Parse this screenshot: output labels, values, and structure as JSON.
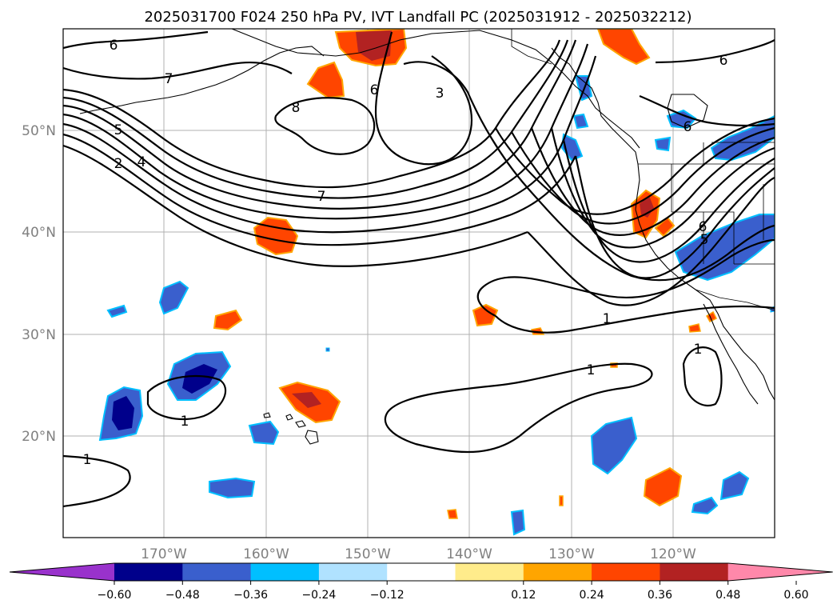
{
  "title": "2025031700 F024 250 hPa PV, IVT Landfall PC (2025031912 - 2025032212)",
  "axes": {
    "x_ticks": [
      "170°W",
      "160°W",
      "150°W",
      "140°W",
      "130°W",
      "120°W"
    ],
    "y_ticks": [
      "50°N",
      "40°N",
      "30°N",
      "20°N"
    ],
    "lon_range": [
      -180,
      -110
    ],
    "lat_range": [
      10,
      60
    ],
    "grid": true
  },
  "contour_labels": [
    "6",
    "7",
    "8",
    "5",
    "4",
    "2",
    "6",
    "3",
    "7",
    "6",
    "6",
    "6",
    "5",
    "1",
    "1",
    "1",
    "1",
    "1"
  ],
  "colorbar": {
    "ticks": [
      "−0.60",
      "−0.48",
      "−0.36",
      "−0.24",
      "−0.12",
      "0.12",
      "0.24",
      "0.36",
      "0.48",
      "0.60"
    ],
    "colors": [
      "#9932cc",
      "#00008b",
      "#3a5fcd",
      "#00bfff",
      "#b0e2ff",
      "#ffffff",
      "#ffec8b",
      "#ffa500",
      "#ff4500",
      "#b22222",
      "#ff88aa"
    ],
    "extend": "both"
  }
}
